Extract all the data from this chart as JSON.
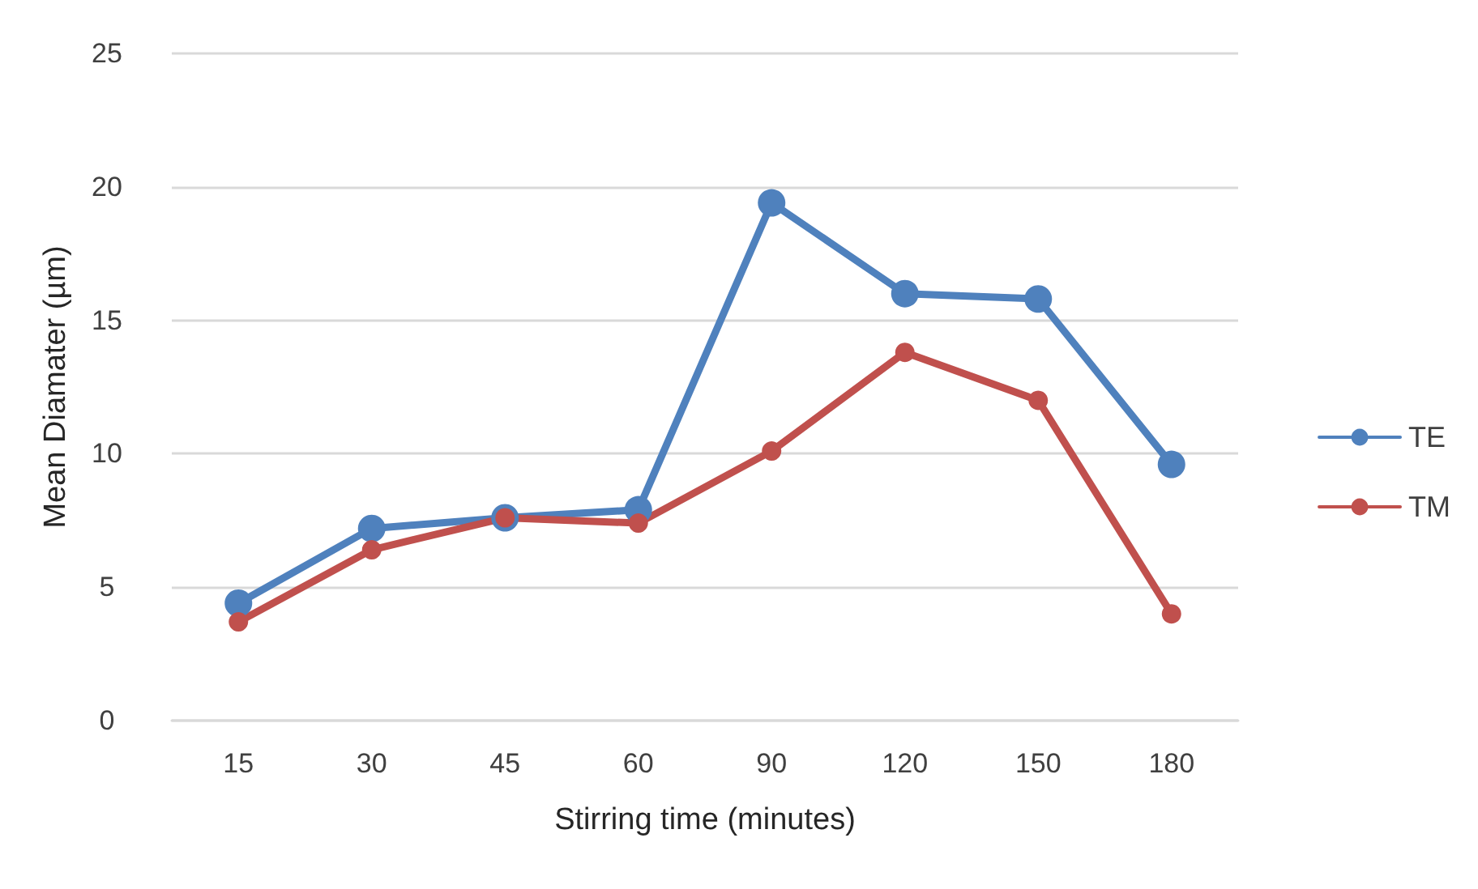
{
  "chart_data": {
    "type": "line",
    "xlabel": "Stirring time (minutes)",
    "ylabel": "Mean Diamater (µm)",
    "categories": [
      "15",
      "30",
      "45",
      "60",
      "90",
      "120",
      "150",
      "180"
    ],
    "series": [
      {
        "name": "TE",
        "color": "#4f81bd",
        "values": [
          4.4,
          7.2,
          7.6,
          7.9,
          19.4,
          16.0,
          15.8,
          9.6
        ]
      },
      {
        "name": "TM",
        "color": "#c0504d",
        "values": [
          3.7,
          6.4,
          7.6,
          7.4,
          10.1,
          13.8,
          12.0,
          4.0
        ]
      }
    ],
    "ylim": [
      0,
      25
    ],
    "yticks": [
      0,
      5,
      10,
      15,
      20,
      25
    ],
    "grid": "y",
    "legend": "right",
    "marker": "circle",
    "line_style": "solid"
  }
}
